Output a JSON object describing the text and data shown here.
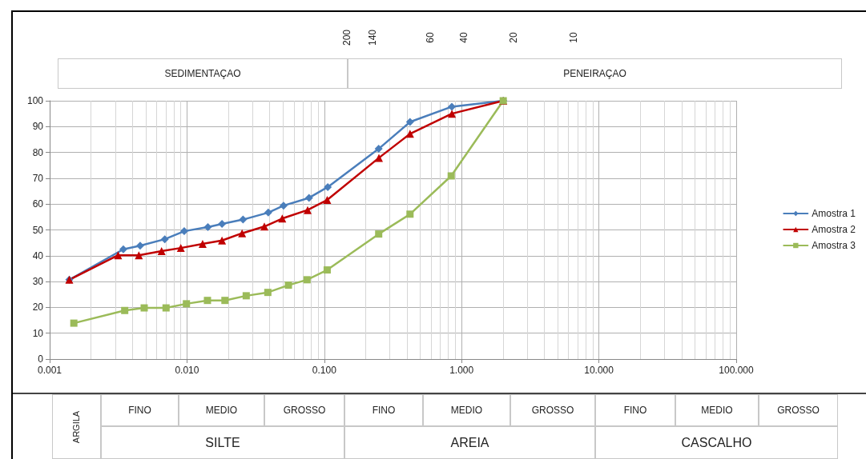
{
  "chart_data": {
    "type": "line",
    "log": "x",
    "grid": true,
    "legend": "right",
    "line_style": "solid",
    "xlim": [
      0.001,
      100
    ],
    "xticks": [
      {
        "value": 0.001,
        "label": "0.001"
      },
      {
        "value": 0.01,
        "label": "0.010"
      },
      {
        "value": 0.1,
        "label": "0.100"
      },
      {
        "value": 1,
        "label": "1.000"
      },
      {
        "value": 10,
        "label": "10.000"
      },
      {
        "value": 100,
        "label": "100.000"
      }
    ],
    "ylim": [
      0,
      100
    ],
    "yticks": [
      0,
      10,
      20,
      30,
      40,
      50,
      60,
      70,
      80,
      90,
      100
    ],
    "series": [
      {
        "name": "Amostra 1",
        "color": "#4a7ebb",
        "marker": "diamond",
        "x": [
          0.00139,
          0.00344,
          0.00456,
          0.00689,
          0.00955,
          0.0142,
          0.018,
          0.0256,
          0.0391,
          0.0505,
          0.0774,
          0.106,
          0.249,
          0.421,
          0.849,
          2.01
        ],
        "values": [
          30.7,
          42.5,
          43.9,
          46.4,
          49.5,
          51.1,
          52.3,
          54.0,
          56.7,
          59.4,
          62.4,
          66.6,
          81.4,
          91.8,
          97.7,
          100
        ]
      },
      {
        "name": "Amostra 2",
        "color": "#c00000",
        "marker": "triangle",
        "x": [
          0.00139,
          0.00315,
          0.00446,
          0.00653,
          0.00902,
          0.013,
          0.018,
          0.0252,
          0.0366,
          0.0494,
          0.0756,
          0.105,
          0.25,
          0.421,
          0.85,
          2.01
        ],
        "values": [
          30.7,
          40.2,
          40.2,
          41.8,
          43.0,
          44.6,
          45.9,
          48.7,
          51.3,
          54.4,
          57.7,
          61.6,
          77.9,
          87.2,
          95.0,
          100
        ]
      },
      {
        "name": "Amostra 3",
        "color": "#9bbb59",
        "marker": "square",
        "x": [
          0.0015,
          0.00352,
          0.00488,
          0.00704,
          0.00991,
          0.0141,
          0.0189,
          0.027,
          0.0388,
          0.0548,
          0.0749,
          0.105,
          0.249,
          0.421,
          0.84,
          2.01
        ],
        "values": [
          13.9,
          18.8,
          19.8,
          19.8,
          21.4,
          22.7,
          22.7,
          24.5,
          25.8,
          28.6,
          30.7,
          34.5,
          48.4,
          56.1,
          70.9,
          100
        ]
      }
    ],
    "annotations": [
      "200",
      "140",
      "60",
      "40",
      "20",
      "10",
      "SEDIMENTAÇAO",
      "PENEIRAÇAO",
      "ARGILA",
      "FINO",
      "MEDIO",
      "GROSSO",
      "FINO",
      "MEDIO",
      "GROSSO",
      "FINO",
      "MEDIO",
      "GROSSO",
      "SILTE",
      "AREIA",
      "CASCALHO"
    ]
  }
}
